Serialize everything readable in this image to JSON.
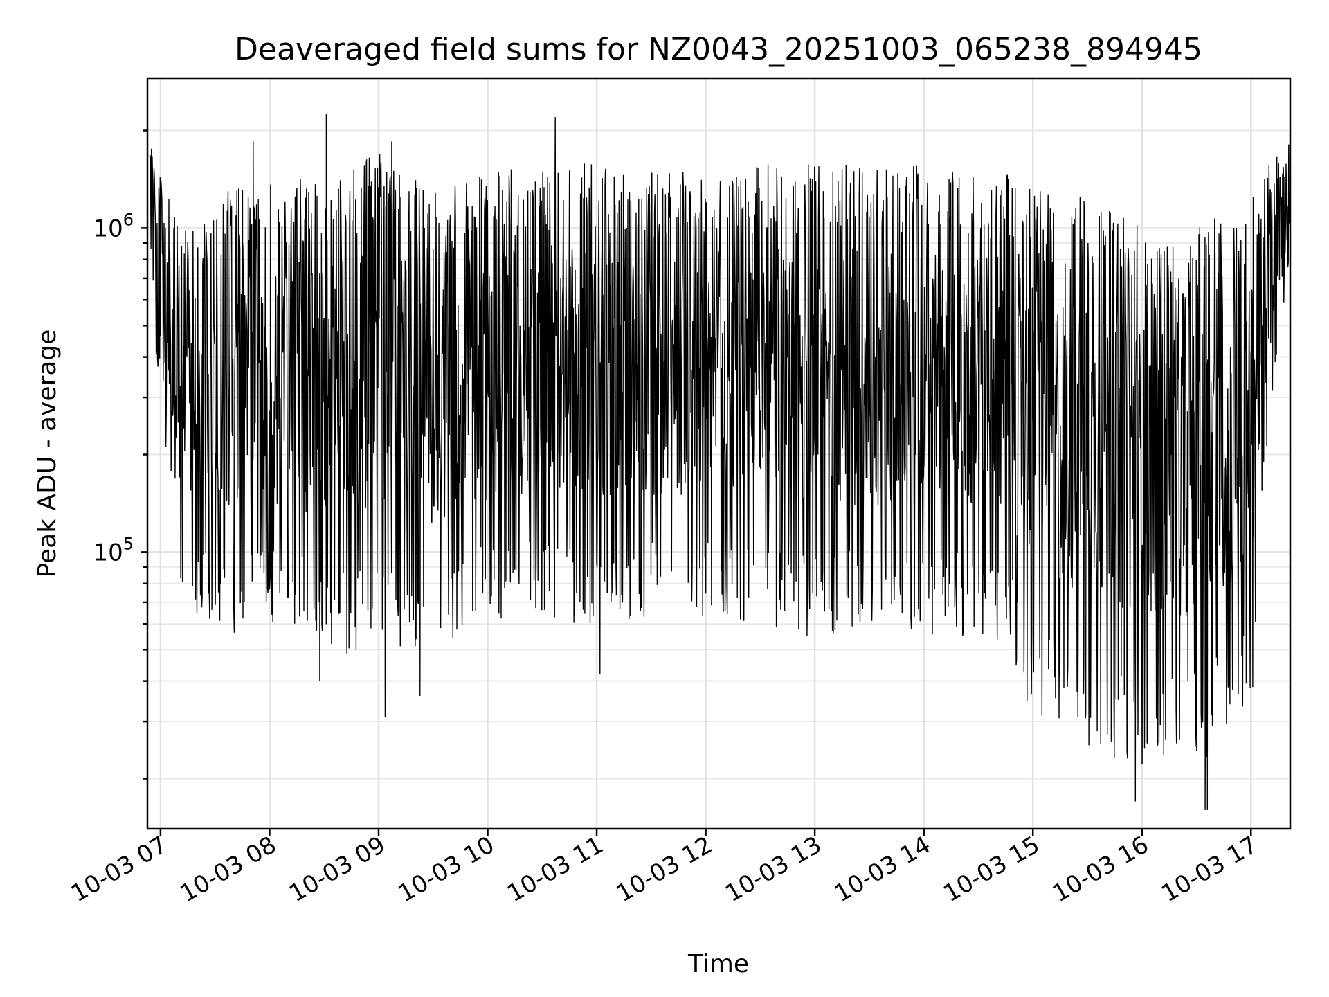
{
  "chart_data": {
    "type": "line",
    "title": "Deaveraged field sums for NZ0043_20251003_065238_894945",
    "xlabel": "Time",
    "ylabel": "Peak ADU - average",
    "yscale": "log",
    "ylim": [
      14000,
      2900000
    ],
    "xlim_hours": [
      6.88,
      17.36
    ],
    "grid": true,
    "legend": "none",
    "line_color": "#000000",
    "x_ticks": [
      {
        "hour": 7,
        "label": "10-03 07"
      },
      {
        "hour": 8,
        "label": "10-03 08"
      },
      {
        "hour": 9,
        "label": "10-03 09"
      },
      {
        "hour": 10,
        "label": "10-03 10"
      },
      {
        "hour": 11,
        "label": "10-03 11"
      },
      {
        "hour": 12,
        "label": "10-03 12"
      },
      {
        "hour": 13,
        "label": "10-03 13"
      },
      {
        "hour": 14,
        "label": "10-03 14"
      },
      {
        "hour": 15,
        "label": "10-03 15"
      },
      {
        "hour": 16,
        "label": "10-03 16"
      },
      {
        "hour": 17,
        "label": "10-03 17"
      }
    ],
    "y_ticks": [
      {
        "value": 100000,
        "base": "10",
        "exp": "5"
      },
      {
        "value": 1000000,
        "base": "10",
        "exp": "6"
      }
    ],
    "series": [
      {
        "name": "Peak ADU - average",
        "envelope": [
          {
            "hour": 6.9,
            "low": 600000,
            "high": 1900000
          },
          {
            "hour": 7.2,
            "low": 70000,
            "high": 1000000
          },
          {
            "hour": 7.6,
            "low": 55000,
            "high": 1300000
          },
          {
            "hour": 8.0,
            "low": 60000,
            "high": 1400000
          },
          {
            "hour": 8.5,
            "low": 50000,
            "high": 1500000
          },
          {
            "hour": 9.0,
            "low": 45000,
            "high": 1700000
          },
          {
            "hour": 9.5,
            "low": 50000,
            "high": 1300000
          },
          {
            "hour": 10.0,
            "low": 60000,
            "high": 1500000
          },
          {
            "hour": 10.5,
            "low": 60000,
            "high": 1600000
          },
          {
            "hour": 11.0,
            "low": 60000,
            "high": 1600000
          },
          {
            "hour": 11.5,
            "low": 60000,
            "high": 1500000
          },
          {
            "hour": 12.0,
            "low": 60000,
            "high": 1500000
          },
          {
            "hour": 12.5,
            "low": 55000,
            "high": 1600000
          },
          {
            "hour": 13.0,
            "low": 55000,
            "high": 1600000
          },
          {
            "hour": 13.5,
            "low": 55000,
            "high": 1600000
          },
          {
            "hour": 14.0,
            "low": 55000,
            "high": 1600000
          },
          {
            "hour": 14.5,
            "low": 55000,
            "high": 1550000
          },
          {
            "hour": 14.8,
            "low": 45000,
            "high": 1450000
          },
          {
            "hour": 15.0,
            "low": 30000,
            "high": 1350000
          },
          {
            "hour": 15.5,
            "low": 24000,
            "high": 1300000
          },
          {
            "hour": 16.0,
            "low": 22000,
            "high": 1000000
          },
          {
            "hour": 16.5,
            "low": 22000,
            "high": 1000000
          },
          {
            "hour": 17.0,
            "low": 30000,
            "high": 1300000
          },
          {
            "hour": 17.1,
            "low": 120000,
            "high": 1500000
          },
          {
            "hour": 17.35,
            "low": 800000,
            "high": 1850000
          }
        ],
        "spikes": [
          {
            "hour": 8.52,
            "value": 2250000
          },
          {
            "hour": 10.62,
            "value": 2200000
          },
          {
            "hour": 7.85,
            "value": 1850000
          },
          {
            "hour": 9.12,
            "value": 1850000
          },
          {
            "hour": 9.06,
            "value": 31000
          },
          {
            "hour": 9.38,
            "value": 36000
          },
          {
            "hour": 8.46,
            "value": 40000
          },
          {
            "hour": 11.03,
            "value": 42000
          },
          {
            "hour": 15.94,
            "value": 17000
          },
          {
            "hour": 16.58,
            "value": 16000
          },
          {
            "hour": 16.6,
            "value": 16000
          }
        ]
      }
    ]
  }
}
